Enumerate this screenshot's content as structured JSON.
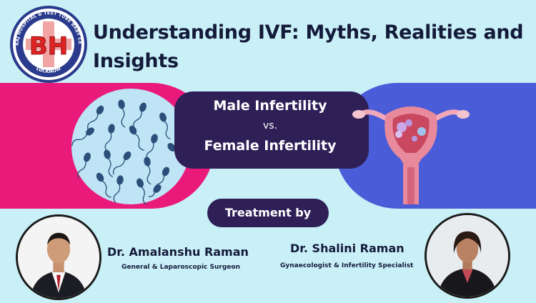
{
  "logo": {
    "letters": "BH",
    "ring_text_top": "BRAJRAJ HOSPITAL & TEST TUBE BABY CENTER",
    "ring_text_bottom": "LUCKNOW"
  },
  "title": {
    "line1": "Understanding IVF: Myths, Realities and",
    "line2": "Insights"
  },
  "comparison": {
    "male": "Male Infertility",
    "vs": "vs.",
    "female": "Female Infertility"
  },
  "treatment_label": "Treatment by",
  "doctors": [
    {
      "name": "Dr. Amalanshu Raman",
      "role": "General & Laparoscopic Surgeon"
    },
    {
      "name": "Dr. Shalini Raman",
      "role": "Gynaecologist & Infertility Specialist"
    }
  ],
  "colors": {
    "background": "#c9f0f7",
    "magenta": "#ea1a7b",
    "navy": "#2e2057",
    "blue": "#4b5cd8",
    "logo_red": "#e02424",
    "logo_ring": "#2a3a8c"
  },
  "icons": [
    "logo-emblem",
    "sperm-illustration",
    "uterus-illustration",
    "doctor-photo"
  ]
}
